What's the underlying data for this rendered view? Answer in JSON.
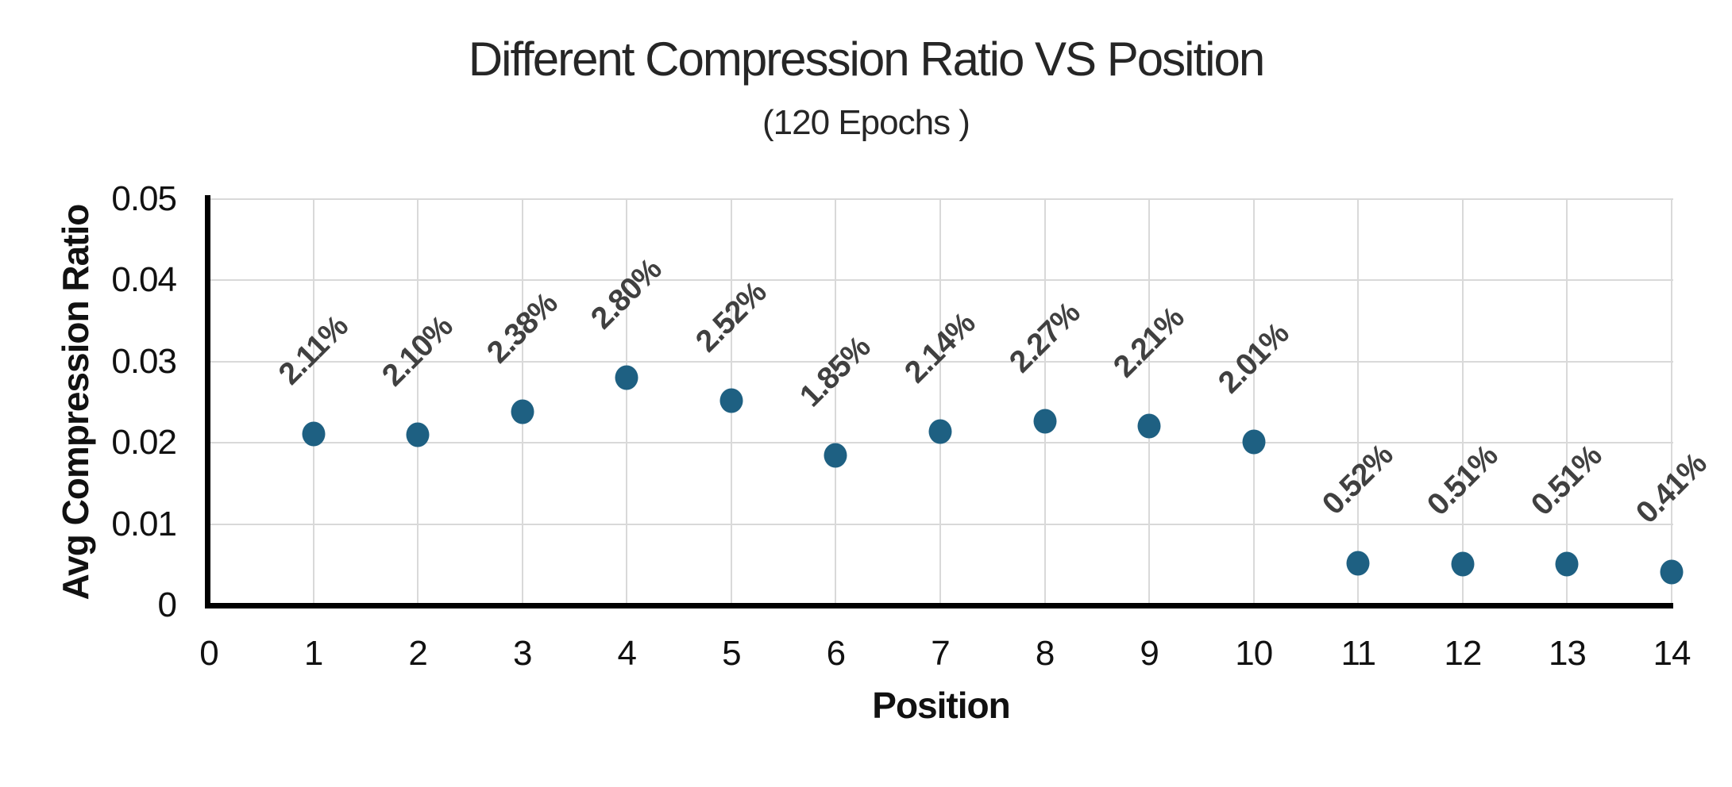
{
  "chart_data": {
    "type": "scatter",
    "title": "Different Compression Ratio VS Position",
    "subtitle": "(120 Epochs )",
    "xlabel": "Position",
    "ylabel": "Avg Compression Ratio",
    "x": [
      1,
      2,
      3,
      4,
      5,
      6,
      7,
      8,
      9,
      10,
      11,
      12,
      13,
      14
    ],
    "y": [
      0.0211,
      0.021,
      0.0238,
      0.028,
      0.0252,
      0.0185,
      0.0214,
      0.0227,
      0.0221,
      0.0201,
      0.0052,
      0.0051,
      0.0051,
      0.0041
    ],
    "point_labels": [
      "2.11%",
      "2.10%",
      "2.38%",
      "2.80%",
      "2.52%",
      "1.85%",
      "2.14%",
      "2.27%",
      "2.21%",
      "2.01%",
      "0.52%",
      "0.51%",
      "0.51%",
      "0.41%"
    ],
    "xlim": [
      0,
      14
    ],
    "ylim": [
      0,
      0.05
    ],
    "xticks": [
      0,
      1,
      2,
      3,
      4,
      5,
      6,
      7,
      8,
      9,
      10,
      11,
      12,
      13,
      14
    ],
    "xtick_labels": [
      "0",
      "1",
      "2",
      "3",
      "4",
      "5",
      "6",
      "7",
      "8",
      "9",
      "10",
      "11",
      "12",
      "13",
      "14"
    ],
    "yticks": [
      0,
      0.01,
      0.02,
      0.03,
      0.04,
      0.05
    ],
    "ytick_labels": [
      "0",
      "0.01",
      "0.02",
      "0.03",
      "0.04",
      "0.05"
    ],
    "grid": true,
    "legend": "none",
    "marker_color": "#1E6082",
    "data_label_color": "#404040",
    "gridline_color": "#D9D9D9",
    "axis_color": "#000000"
  }
}
